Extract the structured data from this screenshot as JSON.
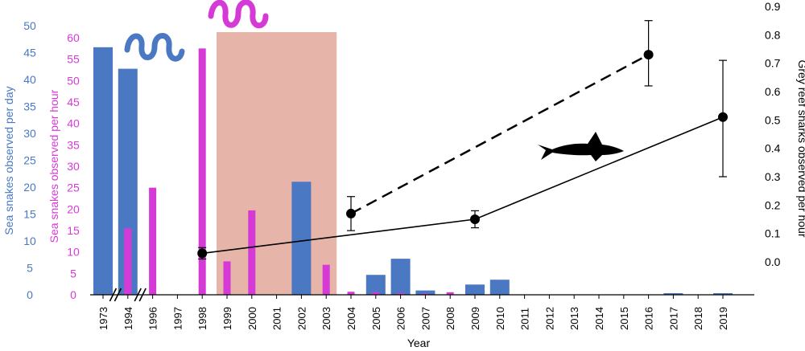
{
  "chart_data": {
    "type": "bar",
    "xlabel": "Year",
    "categories": [
      "1973",
      "1994",
      "1996",
      "1997",
      "1998",
      "1999",
      "2000",
      "2001",
      "2002",
      "2003",
      "2004",
      "2005",
      "2006",
      "2007",
      "2008",
      "2009",
      "2010",
      "2011",
      "2012",
      "2013",
      "2014",
      "2015",
      "2016",
      "2017",
      "2018",
      "2019"
    ],
    "axes": {
      "sea_snakes_per_day": {
        "label": "Sea snakes observed per day",
        "ylim": [
          0,
          50
        ],
        "ticks": [
          "0",
          "5",
          "10",
          "15",
          "20",
          "25",
          "30",
          "35",
          "40",
          "45",
          "50"
        ],
        "color": "#4a78c2"
      },
      "sea_snakes_per_hour": {
        "label": "Sea snakes observed per hour",
        "ylim": [
          0,
          60
        ],
        "ticks": [
          "0",
          "5",
          "10",
          "15",
          "20",
          "25",
          "30",
          "35",
          "40",
          "45",
          "50",
          "55",
          "60"
        ],
        "color": "#d63ad6"
      },
      "grey_reef_sharks_per_hour": {
        "label": "Grey reef sharks observed per hour",
        "ylim": [
          -0.12,
          0.9
        ],
        "ticks": [
          "0.0",
          "0.1",
          "0.2",
          "0.3",
          "0.4",
          "0.5",
          "0.6",
          "0.7",
          "0.8",
          "0.9"
        ],
        "color": "#000000"
      }
    },
    "series": [
      {
        "axis": "sea_snakes_per_day",
        "kind": "bar",
        "color": "#4a78c2",
        "points": [
          {
            "x": "1973",
            "y": 46
          },
          {
            "x": "1994",
            "y": 42
          },
          {
            "x": "2002",
            "y": 21
          },
          {
            "x": "2005",
            "y": 3.7
          },
          {
            "x": "2006",
            "y": 6.7
          },
          {
            "x": "2007",
            "y": 0.8
          },
          {
            "x": "2009",
            "y": 1.9
          },
          {
            "x": "2010",
            "y": 2.8
          },
          {
            "x": "2017",
            "y": 0.3
          },
          {
            "x": "2019",
            "y": 0.3
          }
        ]
      },
      {
        "axis": "sea_snakes_per_hour",
        "kind": "bar",
        "color": "#d63ad6",
        "points": [
          {
            "x": "1994",
            "y": 15.5
          },
          {
            "x": "1996",
            "y": 25
          },
          {
            "x": "1998",
            "y": 57.5
          },
          {
            "x": "1999",
            "y": 7.8
          },
          {
            "x": "2000",
            "y": 19.7
          },
          {
            "x": "2003",
            "y": 7
          },
          {
            "x": "2004",
            "y": 0.7
          },
          {
            "x": "2005",
            "y": 0.6
          },
          {
            "x": "2006",
            "y": 0.4
          },
          {
            "x": "2007",
            "y": 0.3
          },
          {
            "x": "2008",
            "y": 0.6
          }
        ]
      },
      {
        "axis": "grey_reef_sharks_per_hour",
        "kind": "line",
        "style": "solid",
        "color": "#000000",
        "points": [
          {
            "x": "1998",
            "y": 0.03,
            "err_lo": 0.01,
            "err_hi": 0.05
          },
          {
            "x": "2009",
            "y": 0.15,
            "err_lo": 0.12,
            "err_hi": 0.18
          },
          {
            "x": "2019",
            "y": 0.51,
            "err_lo": 0.3,
            "err_hi": 0.71
          }
        ]
      },
      {
        "axis": "grey_reef_sharks_per_hour",
        "kind": "line",
        "style": "dashed",
        "color": "#000000",
        "points": [
          {
            "x": "2004",
            "y": 0.17,
            "err_lo": 0.11,
            "err_hi": 0.23
          },
          {
            "x": "2016",
            "y": 0.73,
            "err_lo": 0.62,
            "err_hi": 0.85
          }
        ]
      }
    ],
    "shaded_period": {
      "from": "1999",
      "to": "2003",
      "color": "#e7b4aa"
    },
    "axis_breaks": [
      "1973-1994",
      "1994-1996"
    ],
    "icons": [
      "blue-sea-snake-icon",
      "magenta-sea-snake-icon",
      "grey-reef-shark-icon"
    ]
  }
}
